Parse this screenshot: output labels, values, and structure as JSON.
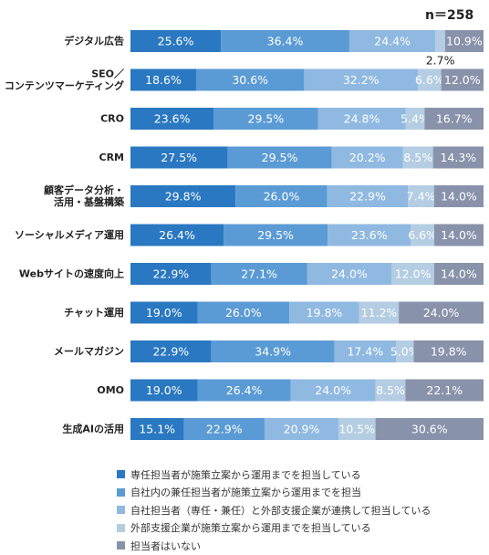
{
  "chart_data": {
    "type": "bar",
    "orientation": "horizontal",
    "stacked": true,
    "unit": "%",
    "note": "n＝258",
    "categories": [
      [
        "デジタル広告"
      ],
      [
        "SEO／",
        "コンテンツマーケティング"
      ],
      [
        "CRO"
      ],
      [
        "CRM"
      ],
      [
        "顧客データ分析・",
        "活用・基盤構築"
      ],
      [
        "ソーシャルメディア運用"
      ],
      [
        "Webサイトの速度向上"
      ],
      [
        "チャット運用"
      ],
      [
        "メールマガジン"
      ],
      [
        "OMO"
      ],
      [
        "生成AIの活用"
      ]
    ],
    "series": [
      {
        "name": "専任担当者が施策立案から運用までを担当している",
        "color": "#2a78c1",
        "values": [
          25.6,
          18.6,
          23.6,
          27.5,
          29.8,
          26.4,
          22.9,
          19.0,
          22.9,
          19.0,
          15.1
        ]
      },
      {
        "name": "自社内の兼任担当者が施策立案から運用までを担当",
        "color": "#5b9bd5",
        "values": [
          36.4,
          30.6,
          29.5,
          29.5,
          26.0,
          29.5,
          27.1,
          26.0,
          34.9,
          26.4,
          22.9
        ]
      },
      {
        "name": "自社担当者（専任・兼任）と外部支援企業が連携して担当している",
        "color": "#8fb9e1",
        "values": [
          24.4,
          32.2,
          24.8,
          20.2,
          22.9,
          23.6,
          24.0,
          19.8,
          17.4,
          24.0,
          20.9
        ]
      },
      {
        "name": "外部支援企業が施策立案から運用までを担当している",
        "color": "#b4cde3",
        "values": [
          2.7,
          6.6,
          5.4,
          8.5,
          7.4,
          6.6,
          12.0,
          11.2,
          5.0,
          8.5,
          10.5
        ]
      },
      {
        "name": "担当者はいない",
        "color": "#8892aa",
        "values": [
          10.9,
          12.0,
          16.7,
          14.3,
          14.0,
          14.0,
          14.0,
          24.0,
          19.8,
          22.1,
          30.6
        ]
      }
    ],
    "grid": false,
    "legend_position": "bottom"
  }
}
